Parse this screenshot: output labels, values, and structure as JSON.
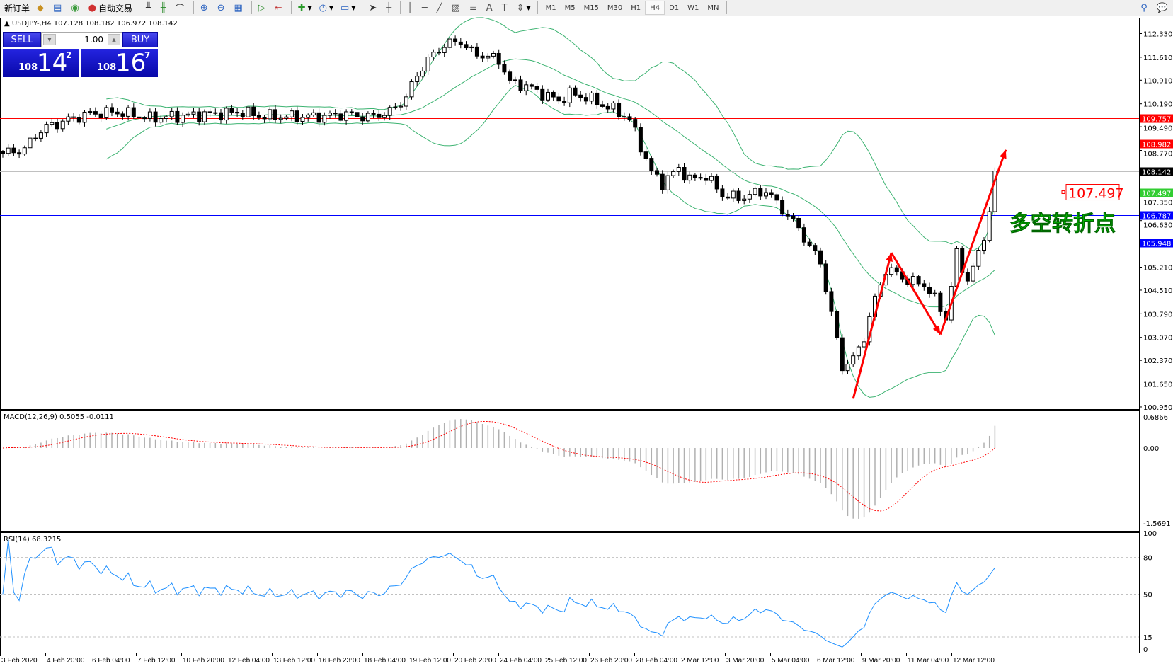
{
  "toolbar": {
    "new_order": "新订单",
    "auto_trading": "自动交易",
    "timeframes": [
      "M1",
      "M5",
      "M15",
      "M30",
      "H1",
      "H4",
      "D1",
      "W1",
      "MN"
    ],
    "active_timeframe": "H4"
  },
  "symbol_header": {
    "arrow": "▲",
    "text": "USDJPY-,H4  107.128 108.182 106.972 108.142"
  },
  "trade_panel": {
    "sell_label": "SELL",
    "buy_label": "BUY",
    "lot": "1.00",
    "sell": {
      "big": "108",
      "main": "14",
      "sup": "2"
    },
    "buy": {
      "big": "108",
      "main": "16",
      "sup": "7"
    }
  },
  "price_axis": [
    "112.330",
    "111.610",
    "110.910",
    "110.190",
    "109.490",
    "108.770",
    "107.350",
    "106.630",
    "105.210",
    "104.510",
    "103.790",
    "103.070",
    "102.370",
    "101.650",
    "100.950"
  ],
  "hlines": [
    {
      "price": 109.757,
      "label": "109.757",
      "color": "#ff0000",
      "tag": "#ff0000"
    },
    {
      "price": 108.982,
      "label": "108.982",
      "color": "#ff0000",
      "tag": "#ff0000"
    },
    {
      "price": 108.142,
      "label": "108.142",
      "color": "#c0c0c0",
      "tag": "#000000"
    },
    {
      "price": 107.497,
      "label": "107.497",
      "color": "#32cd32",
      "tag": "#32cd32"
    },
    {
      "price": 106.787,
      "label": "106.787",
      "color": "#0000ff",
      "tag": "#0000ff"
    },
    {
      "price": 105.948,
      "label": "105.948",
      "color": "#0000ff",
      "tag": "#0000ff"
    }
  ],
  "annotations": {
    "price_label": "107.497",
    "text": "多空转折点",
    "text_color": "#00dd00",
    "arrow_color": "#ff0000",
    "arrow_path": [
      [
        156,
        101.2
      ],
      [
        163,
        105.65
      ],
      [
        172,
        103.16
      ],
      [
        184,
        108.79
      ]
    ]
  },
  "macd": {
    "label": "MACD(12,26,9) 0.5055 -0.0111",
    "axis": [
      "0.6866",
      "0.00",
      "-1.5691"
    ]
  },
  "rsi": {
    "label": "RSI(14) 68.3215",
    "axis": [
      "100",
      "80",
      "50",
      "15",
      "0"
    ]
  },
  "time_axis": [
    "3 Feb 2020",
    "4 Feb 20:00",
    "6 Feb 04:00",
    "7 Feb 12:00",
    "10 Feb 20:00",
    "12 Feb 04:00",
    "13 Feb 12:00",
    "16 Feb 23:00",
    "18 Feb 04:00",
    "19 Feb 12:00",
    "20 Feb 20:00",
    "24 Feb 04:00",
    "25 Feb 12:00",
    "26 Feb 20:00",
    "28 Feb 04:00",
    "2 Mar 12:00",
    "3 Mar 20:00",
    "5 Mar 04:00",
    "6 Mar 12:00",
    "9 Mar 20:00",
    "11 Mar 04:00",
    "12 Mar 12:00"
  ],
  "chart_data": {
    "type": "candlestick",
    "symbol": "USDJPY-",
    "timeframe": "H4",
    "ylim": [
      100.95,
      112.33
    ],
    "close_keyframes": [
      [
        0,
        108.68
      ],
      [
        4,
        108.8
      ],
      [
        6,
        109.25
      ],
      [
        8,
        109.48
      ],
      [
        12,
        109.7
      ],
      [
        16,
        109.89
      ],
      [
        21,
        109.94
      ],
      [
        25,
        109.82
      ],
      [
        27,
        109.75
      ],
      [
        33,
        109.82
      ],
      [
        38,
        109.87
      ],
      [
        44,
        109.94
      ],
      [
        47,
        109.82
      ],
      [
        52,
        109.8
      ],
      [
        58,
        109.8
      ],
      [
        63,
        109.87
      ],
      [
        67,
        109.78
      ],
      [
        71,
        109.94
      ],
      [
        74,
        110.39
      ],
      [
        76,
        111.08
      ],
      [
        78,
        111.53
      ],
      [
        81,
        111.99
      ],
      [
        84,
        112.1
      ],
      [
        86,
        111.76
      ],
      [
        91,
        111.53
      ],
      [
        93,
        110.85
      ],
      [
        96,
        110.73
      ],
      [
        99,
        110.5
      ],
      [
        102,
        110.28
      ],
      [
        104,
        110.5
      ],
      [
        107,
        110.39
      ],
      [
        110,
        110.16
      ],
      [
        113,
        109.94
      ],
      [
        115,
        109.71
      ],
      [
        117,
        108.91
      ],
      [
        119,
        108.11
      ],
      [
        121,
        107.77
      ],
      [
        124,
        108.22
      ],
      [
        126,
        107.88
      ],
      [
        129,
        107.99
      ],
      [
        132,
        107.42
      ],
      [
        135,
        107.31
      ],
      [
        137,
        107.42
      ],
      [
        140,
        107.54
      ],
      [
        143,
        106.97
      ],
      [
        146,
        106.4
      ],
      [
        148,
        105.83
      ],
      [
        150,
        105.37
      ],
      [
        152,
        103.77
      ],
      [
        154,
        102.18
      ],
      [
        156,
        102.4
      ],
      [
        158,
        103.09
      ],
      [
        160,
        104.23
      ],
      [
        162,
        105.14
      ],
      [
        164,
        105.02
      ],
      [
        166,
        104.8
      ],
      [
        169,
        104.68
      ],
      [
        171,
        104.23
      ],
      [
        173,
        103.66
      ],
      [
        175,
        105.6
      ],
      [
        177,
        104.8
      ],
      [
        179,
        105.6
      ],
      [
        181,
        106.85
      ],
      [
        182,
        108.142
      ]
    ],
    "indicators": [
      "Bollinger Bands(20,2)",
      "MACD(12,26,9)",
      "RSI(14)"
    ]
  }
}
